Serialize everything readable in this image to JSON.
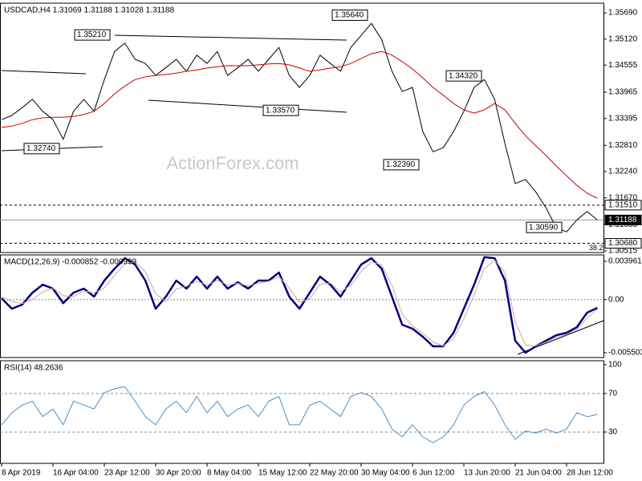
{
  "chart_data": [
    {
      "type": "line",
      "title": "USDCAD,H4  1.31069 1.31188 1.31028 1.31188",
      "watermark": "ActionForex.com",
      "xlim": [
        0,
        58
      ],
      "ylim": [
        1.3048,
        1.359
      ],
      "yticks": [
        {
          "value": 1.3569,
          "label": "1.35690"
        },
        {
          "value": 1.3512,
          "label": "1.35120"
        },
        {
          "value": 1.34555,
          "label": "1.34555"
        },
        {
          "value": 1.33965,
          "label": "1.33965"
        },
        {
          "value": 1.33395,
          "label": "1.33395"
        },
        {
          "value": 1.3281,
          "label": "1.32810"
        },
        {
          "value": 1.3224,
          "label": "1.32240"
        },
        {
          "value": 1.3167,
          "label": "1.31670"
        },
        {
          "value": 1.31085,
          "label": "1.31085"
        },
        {
          "value": 1.30515,
          "label": "1.30515"
        }
      ],
      "series": [
        {
          "color": "#000000",
          "values": [
            1.3337,
            1.3346,
            1.3363,
            1.3381,
            1.3355,
            1.3337,
            1.3294,
            1.3355,
            1.3381,
            1.3355,
            1.3424,
            1.3485,
            1.3503,
            1.3468,
            1.3459,
            1.3433,
            1.345,
            1.3468,
            1.3442,
            1.3477,
            1.3459,
            1.3485,
            1.3433,
            1.345,
            1.3468,
            1.3442,
            1.3468,
            1.3494,
            1.3433,
            1.3407,
            1.3433,
            1.3477,
            1.3459,
            1.3442,
            1.3494,
            1.352,
            1.3546,
            1.3511,
            1.3442,
            1.3398,
            1.3407,
            1.3311,
            1.3267,
            1.3276,
            1.3311,
            1.3355,
            1.3407,
            1.3424,
            1.3381,
            1.3285,
            1.3198,
            1.3207,
            1.318,
            1.3145,
            1.3102,
            1.3093,
            1.3119,
            1.3137,
            1.31188
          ]
        },
        {
          "color": "#cc0000",
          "values": [
            1.332,
            1.3323,
            1.3329,
            1.3337,
            1.3341,
            1.3342,
            1.3342,
            1.3344,
            1.3348,
            1.3355,
            1.3372,
            1.3393,
            1.341,
            1.3424,
            1.343,
            1.3433,
            1.3435,
            1.3438,
            1.3442,
            1.3445,
            1.3449,
            1.3452,
            1.3454,
            1.3454,
            1.3454,
            1.3456,
            1.3458,
            1.3459,
            1.3456,
            1.3449,
            1.3442,
            1.3445,
            1.3449,
            1.3452,
            1.3459,
            1.347,
            1.348,
            1.3485,
            1.3477,
            1.3463,
            1.3447,
            1.3428,
            1.3407,
            1.339,
            1.3372,
            1.3358,
            1.3351,
            1.3358,
            1.3372,
            1.3358,
            1.3329,
            1.3302,
            1.328,
            1.3259,
            1.3236,
            1.3215,
            1.3194,
            1.3177,
            1.3166
          ]
        }
      ],
      "annotations": [
        {
          "value": 1.3521,
          "label": "1.35210"
        },
        {
          "value": 1.3274,
          "label": "1.32740"
        },
        {
          "value": 1.3357,
          "label": "1.33570"
        },
        {
          "value": 1.3564,
          "label": "1.35640"
        },
        {
          "value": 1.3432,
          "label": "1.34320"
        },
        {
          "value": 1.3239,
          "label": "1.32390"
        },
        {
          "value": 1.3059,
          "label": "1.30590"
        }
      ],
      "levels": [
        {
          "value": 1.3151,
          "label": "1.31510",
          "style": "dashed"
        },
        {
          "value": 1.31188,
          "label": "1.31188",
          "style": "current"
        },
        {
          "value": 1.3068,
          "label": "1.30680",
          "style": "dashed"
        }
      ],
      "fib_label": "38.2"
    },
    {
      "type": "line",
      "title": "MACD(12,26,9) -0.000852 -0.000999",
      "xlim": [
        0,
        58
      ],
      "ylim": [
        -0.006,
        0.00463
      ],
      "yticks": [
        {
          "value": 0.003961,
          "label": "0.003961"
        },
        {
          "value": 0,
          "label": "0.00"
        },
        {
          "value": -0.005503,
          "label": "-0.005503"
        }
      ],
      "series": [
        {
          "color": "#000080",
          "values": [
            0.00014,
            -0.00094,
            -0.00052,
            0.00072,
            0.00155,
            0.00114,
            -0.00036,
            0.00072,
            0.00114,
            0.00031,
            0.00197,
            0.00321,
            0.00429,
            0.00363,
            0.00197,
            -0.00094,
            0.00031,
            0.00197,
            0.00114,
            0.00238,
            0.00114,
            0.00238,
            0.00114,
            0.0018,
            0.00114,
            0.00197,
            0.00197,
            0.0028,
            0.00031,
            -0.00094,
            0.00072,
            0.00238,
            0.00155,
            0.00031,
            0.00197,
            0.00363,
            0.00429,
            0.00321,
            0.00031,
            -0.0026,
            -0.00301,
            -0.00384,
            -0.00484,
            -0.00484,
            -0.00343,
            -0.00094,
            0.00155,
            0.0044,
            0.00429,
            0.00197,
            -0.00426,
            -0.0055,
            -0.00484,
            -0.00426,
            -0.00368,
            -0.00343,
            -0.00285,
            -0.00135,
            -0.00085
          ]
        },
        {
          "color": "#d8a0a0",
          "values": [
            0.0003,
            -0.0002,
            -0.0004,
            0,
            0.0008,
            0.0012,
            0.0004,
            0.0003,
            0.0009,
            0.0007,
            0.0012,
            0.0025,
            0.0037,
            0.0039,
            0.0029,
            0.0006,
            -0.0002,
            0.0011,
            0.0014,
            0.0019,
            0.0015,
            0.002,
            0.0015,
            0.0017,
            0.0014,
            0.0017,
            0.0019,
            0.0024,
            0.0012,
            -0.0003,
            0.0001,
            0.0016,
            0.0017,
            0.0008,
            0.0015,
            0.0029,
            0.0039,
            0.0036,
            0.0015,
            -0.0015,
            -0.0027,
            -0.0035,
            -0.0044,
            -0.0048,
            -0.004,
            -0.002,
            0.0005,
            0.0032,
            0.0041,
            0.0028,
            -0.0023,
            -0.0047,
            -0.0048,
            -0.0044,
            -0.0039,
            -0.0036,
            -0.0031,
            -0.0019,
            -0.001
          ]
        }
      ]
    },
    {
      "type": "line",
      "title": "RSI(14) 48.2636",
      "xlim": [
        0,
        58
      ],
      "ylim": [
        -2.5,
        104
      ],
      "yticks": [
        100,
        70,
        30
      ],
      "xticks": [
        {
          "value": 0,
          "label": "8 Apr 2019"
        },
        {
          "value": 5,
          "label": "16 Apr 04:00"
        },
        {
          "value": 10,
          "label": "23 Apr 12:00"
        },
        {
          "value": 15,
          "label": "30 Apr 20:00"
        },
        {
          "value": 20,
          "label": "8 May 04:00"
        },
        {
          "value": 25,
          "label": "15 May 12:00"
        },
        {
          "value": 30,
          "label": "22 May 20:00"
        },
        {
          "value": 35,
          "label": "30 May 04:00"
        },
        {
          "value": 40,
          "label": "6 Jun 12:00"
        },
        {
          "value": 45,
          "label": "13 Jun 20:00"
        },
        {
          "value": 50,
          "label": "21 Jun 04:00"
        },
        {
          "value": 55,
          "label": "28 Jun 12:00"
        }
      ],
      "series": [
        {
          "color": "#4a8fcb",
          "values": [
            37.5,
            50,
            58,
            62,
            46,
            54,
            37.5,
            62,
            58,
            54,
            71,
            75,
            77,
            62,
            46,
            37.5,
            54,
            62,
            50,
            67,
            50,
            62,
            46,
            54,
            58,
            46,
            62,
            67,
            37.5,
            37.5,
            58,
            62,
            54,
            46,
            67,
            71,
            67,
            54,
            33,
            25,
            37.5,
            25,
            19,
            25,
            37.5,
            58,
            67,
            72,
            58,
            37.5,
            22.5,
            31,
            29,
            33,
            29,
            33,
            50,
            46,
            48.2636
          ]
        }
      ]
    }
  ]
}
